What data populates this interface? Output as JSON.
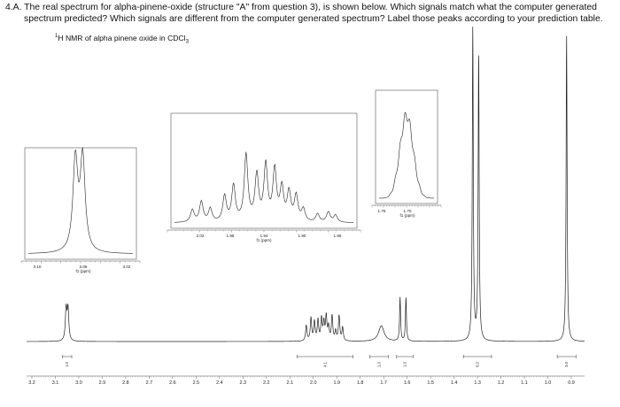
{
  "question": {
    "line1": "4.A. The real spectrum for alpha-pinene-oxide (structure \"A\" from question 3), is shown below. Which signals match what the computer generated",
    "line2": "spectrum predicted? Which signals are different from the computer generated spectrum? Label those peaks according to your prediction table."
  },
  "spectrum_title": {
    "nucleus_sup": "1",
    "text": "H NMR of alpha pinene oxide in CDCl",
    "solvent_sub": "3"
  },
  "chart_data": {
    "type": "line",
    "title": "1H NMR of alpha pinene oxide in CDCl3",
    "x_axis": {
      "reversed": true,
      "range": [
        3.2,
        0.9
      ],
      "tick_labels": [
        "3.2",
        "3.1",
        "3.0",
        "2.9",
        "2.8",
        "2.7",
        "2.6",
        "2.5",
        "2.4",
        "2.3",
        "2.2",
        "2.1",
        "2.0",
        "1.9",
        "1.8",
        "1.7",
        "1.6",
        "1.5",
        "1.4",
        "1.3",
        "1.2",
        "1.1",
        "1.0",
        "0.9"
      ]
    },
    "peaks": [
      {
        "shift": 3.05,
        "relative_height": 0.1,
        "kind": "doublet"
      },
      {
        "shift": 1.95,
        "relative_height": 0.1,
        "kind": "multiplet"
      },
      {
        "shift": 1.71,
        "relative_height": 0.05,
        "kind": "broad"
      },
      {
        "shift": 1.63,
        "relative_height": 0.14,
        "kind": "singlet"
      },
      {
        "shift": 1.605,
        "relative_height": 0.14,
        "kind": "singlet"
      },
      {
        "shift": 1.32,
        "relative_height": 1.0,
        "kind": "singlet"
      },
      {
        "shift": 1.295,
        "relative_height": 0.92,
        "kind": "singlet"
      },
      {
        "shift": 0.92,
        "relative_height": 0.98,
        "kind": "singlet"
      }
    ],
    "integrations": [
      {
        "center": 3.05,
        "label": "1.0"
      },
      {
        "center": 1.95,
        "label": "4.1"
      },
      {
        "center": 1.72,
        "label": "1.0"
      },
      {
        "center": 1.61,
        "label": "1.0"
      },
      {
        "center": 1.3,
        "label": "6.0"
      },
      {
        "center": 0.92,
        "label": "3.0"
      }
    ],
    "insets": [
      {
        "name": "inset-3.05",
        "tick_labels": [
          "3.10",
          "3.06",
          "3.02"
        ],
        "axis_label": "f1 (ppm)"
      },
      {
        "name": "inset-1.95",
        "tick_labels": [
          "2.02",
          "1.98",
          "1.94",
          "1.90",
          "1.86"
        ],
        "axis_label": "f1 (ppm)"
      },
      {
        "name": "inset-1.71",
        "tick_labels": [
          "1.75",
          "1.70"
        ],
        "axis_label": "f1 (ppm)"
      }
    ]
  }
}
